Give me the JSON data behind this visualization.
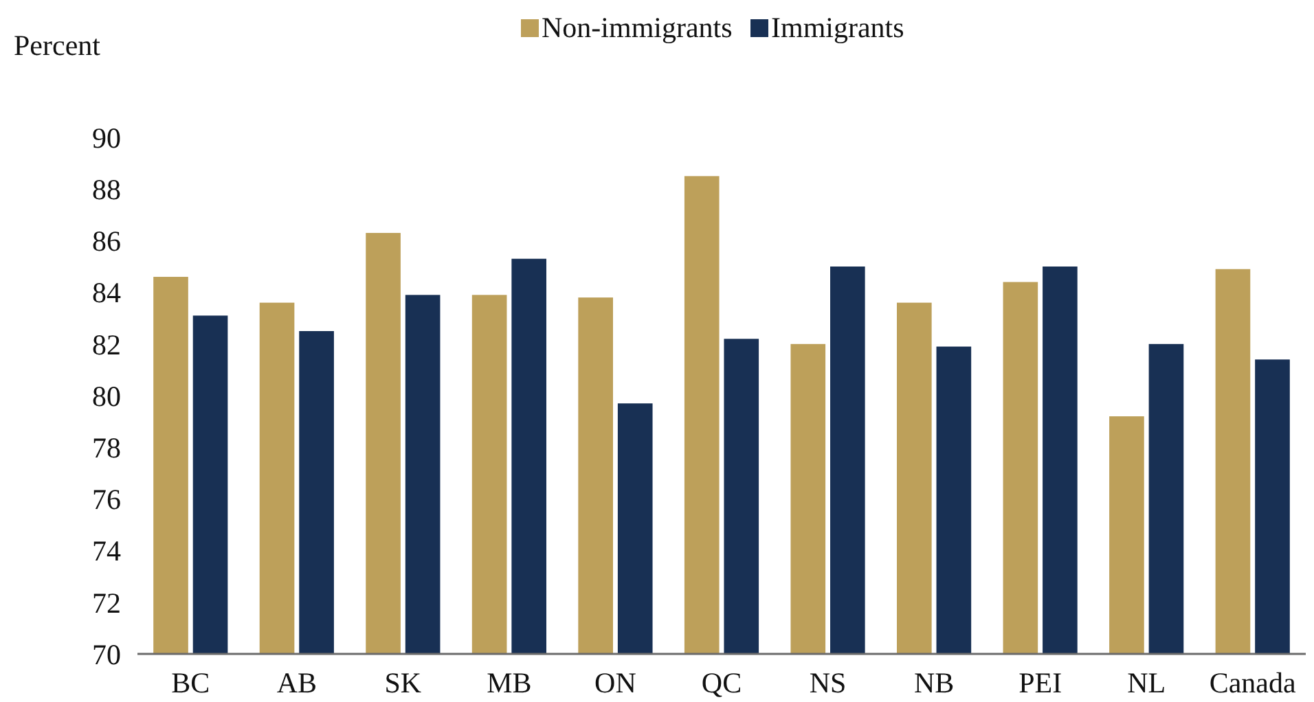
{
  "chart_data": {
    "type": "bar",
    "ylabel": "Percent",
    "categories": [
      "BC",
      "AB",
      "SK",
      "MB",
      "ON",
      "QC",
      "NS",
      "NB",
      "PEI",
      "NL",
      "Canada"
    ],
    "series": [
      {
        "name": "Non-immigrants",
        "color": "#bda05a",
        "values": [
          84.6,
          83.6,
          86.3,
          83.9,
          83.8,
          88.5,
          82.0,
          83.6,
          84.4,
          79.2,
          84.9
        ]
      },
      {
        "name": "Immigrants",
        "color": "#183054",
        "values": [
          83.1,
          82.5,
          83.9,
          85.3,
          79.7,
          82.2,
          85.0,
          81.9,
          85.0,
          82.0,
          81.4
        ]
      }
    ],
    "ylim": [
      70,
      90
    ],
    "yticks": [
      70,
      72,
      74,
      76,
      78,
      80,
      82,
      84,
      86,
      88,
      90
    ],
    "grid": false,
    "legend": "top"
  }
}
